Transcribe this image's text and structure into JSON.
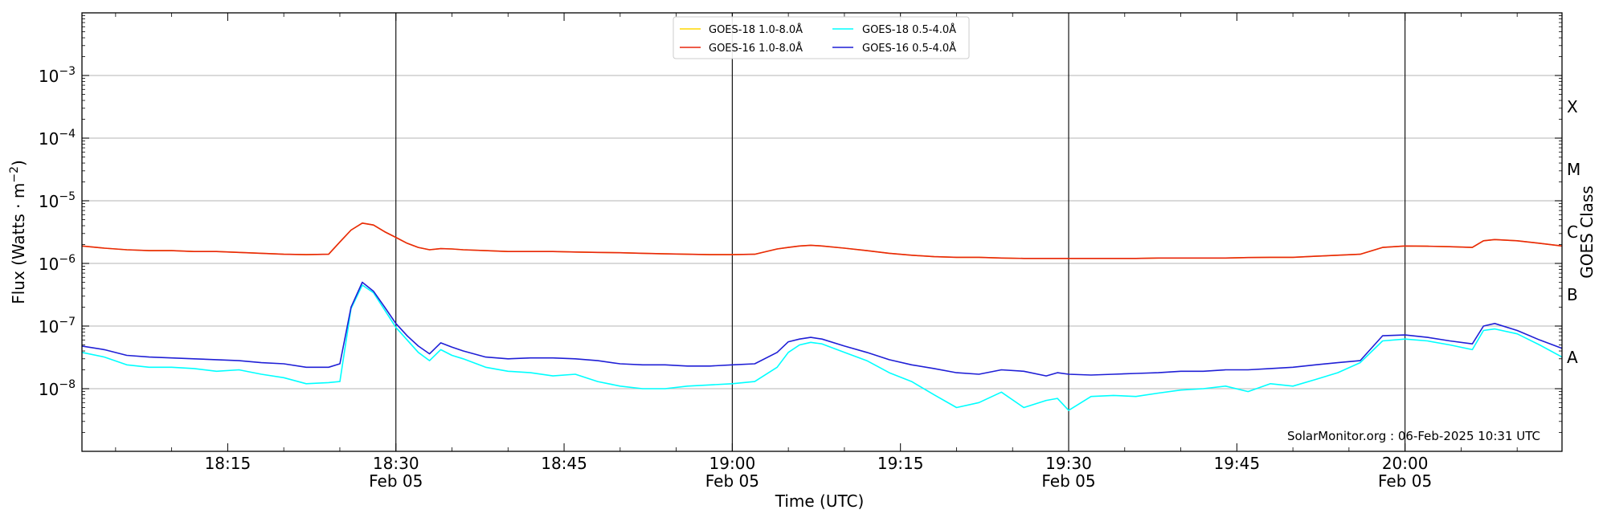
{
  "chart_data": {
    "type": "line",
    "y_scale": "log",
    "ylabel_text": "Flux (Watts · m",
    "ylabel_exp": "−2",
    "ylabel_close": ")",
    "xlabel": "Time (UTC)",
    "right_ylabel": "GOES Class",
    "xlim": [
      "18:02",
      "20:14"
    ],
    "ylim": [
      1e-09,
      0.01
    ],
    "y_ticks": [
      {
        "base": "10",
        "exp": "−8"
      },
      {
        "base": "10",
        "exp": "−7"
      },
      {
        "base": "10",
        "exp": "−6"
      },
      {
        "base": "10",
        "exp": "−5"
      },
      {
        "base": "10",
        "exp": "−4"
      },
      {
        "base": "10",
        "exp": "−3"
      }
    ],
    "x_ticks": [
      {
        "time": "18:15",
        "label": "18:15",
        "sub": ""
      },
      {
        "time": "18:30",
        "label": "18:30",
        "sub": "Feb 05"
      },
      {
        "time": "18:45",
        "label": "18:45",
        "sub": ""
      },
      {
        "time": "19:00",
        "label": "19:00",
        "sub": "Feb 05"
      },
      {
        "time": "19:15",
        "label": "19:15",
        "sub": ""
      },
      {
        "time": "19:30",
        "label": "19:30",
        "sub": "Feb 05"
      },
      {
        "time": "19:45",
        "label": "19:45",
        "sub": ""
      },
      {
        "time": "20:00",
        "label": "20:00",
        "sub": "Feb 05"
      }
    ],
    "vertical_lines": [
      "18:30",
      "19:00",
      "19:30",
      "20:00"
    ],
    "goes_classes": [
      "A",
      "B",
      "C",
      "M",
      "X"
    ],
    "grid": "horizontal",
    "legend_position": "top-center",
    "credit": "SolarMonitor.org : 06-Feb-2025 10:31 UTC",
    "x": [
      "18:02",
      "18:04",
      "18:06",
      "18:08",
      "18:10",
      "18:12",
      "18:14",
      "18:16",
      "18:18",
      "18:20",
      "18:22",
      "18:24",
      "18:25",
      "18:26",
      "18:27",
      "18:28",
      "18:29",
      "18:30",
      "18:31",
      "18:32",
      "18:33",
      "18:34",
      "18:35",
      "18:36",
      "18:38",
      "18:40",
      "18:42",
      "18:44",
      "18:46",
      "18:48",
      "18:50",
      "18:52",
      "18:54",
      "18:56",
      "18:58",
      "19:00",
      "19:02",
      "19:04",
      "19:05",
      "19:06",
      "19:07",
      "19:08",
      "19:10",
      "19:12",
      "19:14",
      "19:16",
      "19:18",
      "19:20",
      "19:22",
      "19:24",
      "19:26",
      "19:28",
      "19:29",
      "19:30",
      "19:32",
      "19:34",
      "19:36",
      "19:38",
      "19:40",
      "19:42",
      "19:44",
      "19:46",
      "19:48",
      "19:50",
      "19:52",
      "19:54",
      "19:56",
      "19:58",
      "20:00",
      "20:02",
      "20:04",
      "20:06",
      "20:07",
      "20:08",
      "20:10",
      "20:12",
      "20:14"
    ],
    "series": [
      {
        "name": "GOES-18 1.0-8.0Å",
        "color": "#ffd700",
        "values": [
          1.9e-06,
          1.75e-06,
          1.65e-06,
          1.6e-06,
          1.6e-06,
          1.55e-06,
          1.55e-06,
          1.5e-06,
          1.45e-06,
          1.4e-06,
          1.38e-06,
          1.4e-06,
          2.2e-06,
          3.4e-06,
          4.4e-06,
          4.1e-06,
          3.2e-06,
          2.6e-06,
          2.1e-06,
          1.8e-06,
          1.65e-06,
          1.72e-06,
          1.7e-06,
          1.65e-06,
          1.6e-06,
          1.55e-06,
          1.55e-06,
          1.55e-06,
          1.52e-06,
          1.5e-06,
          1.48e-06,
          1.45e-06,
          1.42e-06,
          1.4e-06,
          1.38e-06,
          1.38e-06,
          1.4e-06,
          1.7e-06,
          1.8e-06,
          1.9e-06,
          1.95e-06,
          1.9e-06,
          1.75e-06,
          1.6e-06,
          1.45e-06,
          1.35e-06,
          1.28e-06,
          1.25e-06,
          1.25e-06,
          1.22e-06,
          1.2e-06,
          1.2e-06,
          1.2e-06,
          1.2e-06,
          1.2e-06,
          1.2e-06,
          1.2e-06,
          1.22e-06,
          1.22e-06,
          1.22e-06,
          1.22e-06,
          1.24e-06,
          1.25e-06,
          1.25e-06,
          1.3e-06,
          1.35e-06,
          1.4e-06,
          1.8e-06,
          1.9e-06,
          1.88e-06,
          1.85e-06,
          1.8e-06,
          2.3e-06,
          2.4e-06,
          2.3e-06,
          2.1e-06,
          1.9e-06
        ]
      },
      {
        "name": "GOES-16 1.0-8.0Å",
        "color": "#e8260f",
        "values": [
          1.9e-06,
          1.75e-06,
          1.65e-06,
          1.6e-06,
          1.6e-06,
          1.55e-06,
          1.55e-06,
          1.5e-06,
          1.45e-06,
          1.4e-06,
          1.38e-06,
          1.4e-06,
          2.2e-06,
          3.4e-06,
          4.4e-06,
          4.1e-06,
          3.2e-06,
          2.6e-06,
          2.1e-06,
          1.8e-06,
          1.65e-06,
          1.72e-06,
          1.7e-06,
          1.65e-06,
          1.6e-06,
          1.55e-06,
          1.55e-06,
          1.55e-06,
          1.52e-06,
          1.5e-06,
          1.48e-06,
          1.45e-06,
          1.42e-06,
          1.4e-06,
          1.38e-06,
          1.38e-06,
          1.4e-06,
          1.7e-06,
          1.8e-06,
          1.9e-06,
          1.95e-06,
          1.9e-06,
          1.75e-06,
          1.6e-06,
          1.45e-06,
          1.35e-06,
          1.28e-06,
          1.25e-06,
          1.25e-06,
          1.22e-06,
          1.2e-06,
          1.2e-06,
          1.2e-06,
          1.2e-06,
          1.2e-06,
          1.2e-06,
          1.2e-06,
          1.22e-06,
          1.22e-06,
          1.22e-06,
          1.22e-06,
          1.24e-06,
          1.25e-06,
          1.25e-06,
          1.3e-06,
          1.35e-06,
          1.4e-06,
          1.8e-06,
          1.9e-06,
          1.88e-06,
          1.85e-06,
          1.8e-06,
          2.3e-06,
          2.4e-06,
          2.3e-06,
          2.1e-06,
          1.9e-06
        ]
      },
      {
        "name": "GOES-18 0.5-4.0Å",
        "color": "#00ffff",
        "values": [
          3.8e-08,
          3.2e-08,
          2.4e-08,
          2.2e-08,
          2.2e-08,
          2.1e-08,
          1.9e-08,
          2e-08,
          1.7e-08,
          1.5e-08,
          1.2e-08,
          1.25e-08,
          1.3e-08,
          1.9e-07,
          4.5e-07,
          3.4e-07,
          1.8e-07,
          9.5e-08,
          6e-08,
          3.8e-08,
          2.8e-08,
          4.2e-08,
          3.4e-08,
          3e-08,
          2.2e-08,
          1.9e-08,
          1.8e-08,
          1.6e-08,
          1.7e-08,
          1.3e-08,
          1.1e-08,
          1e-08,
          1e-08,
          1.1e-08,
          1.15e-08,
          1.2e-08,
          1.3e-08,
          2.2e-08,
          3.8e-08,
          5e-08,
          5.5e-08,
          5.2e-08,
          3.8e-08,
          2.8e-08,
          1.8e-08,
          1.3e-08,
          8e-09,
          5e-09,
          6e-09,
          8.8e-09,
          5e-09,
          6.5e-09,
          7e-09,
          4.5e-09,
          7.5e-09,
          7.8e-09,
          7.5e-09,
          8.5e-09,
          9.5e-09,
          1e-08,
          1.1e-08,
          9e-09,
          1.2e-08,
          1.1e-08,
          1.4e-08,
          1.8e-08,
          2.6e-08,
          5.8e-08,
          6.2e-08,
          5.8e-08,
          5e-08,
          4.2e-08,
          8.5e-08,
          9e-08,
          7.5e-08,
          5e-08,
          3.2e-08
        ]
      },
      {
        "name": "GOES-16 0.5-4.0Å",
        "color": "#1f1fd6",
        "values": [
          4.8e-08,
          4.2e-08,
          3.4e-08,
          3.2e-08,
          3.1e-08,
          3e-08,
          2.9e-08,
          2.8e-08,
          2.6e-08,
          2.5e-08,
          2.2e-08,
          2.2e-08,
          2.5e-08,
          2e-07,
          5e-07,
          3.6e-07,
          2e-07,
          1.1e-07,
          7e-08,
          4.8e-08,
          3.6e-08,
          5.4e-08,
          4.6e-08,
          4e-08,
          3.2e-08,
          3e-08,
          3.1e-08,
          3.1e-08,
          3e-08,
          2.8e-08,
          2.5e-08,
          2.4e-08,
          2.4e-08,
          2.3e-08,
          2.3e-08,
          2.4e-08,
          2.5e-08,
          3.8e-08,
          5.6e-08,
          6.2e-08,
          6.6e-08,
          6.2e-08,
          4.8e-08,
          3.8e-08,
          2.9e-08,
          2.4e-08,
          2.1e-08,
          1.8e-08,
          1.7e-08,
          2e-08,
          1.9e-08,
          1.6e-08,
          1.8e-08,
          1.7e-08,
          1.65e-08,
          1.7e-08,
          1.75e-08,
          1.8e-08,
          1.9e-08,
          1.9e-08,
          2e-08,
          2e-08,
          2.1e-08,
          2.2e-08,
          2.4e-08,
          2.6e-08,
          2.8e-08,
          7e-08,
          7.2e-08,
          6.6e-08,
          5.8e-08,
          5.2e-08,
          1e-07,
          1.1e-07,
          8.5e-08,
          6e-08,
          4.4e-08
        ]
      }
    ]
  }
}
